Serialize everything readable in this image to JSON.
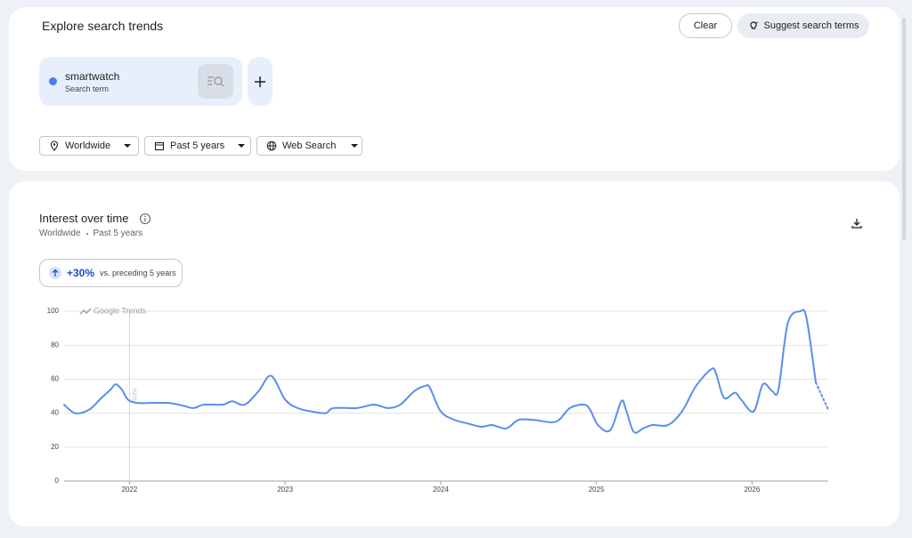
{
  "header": {
    "title": "Explore search trends",
    "clear": "Clear",
    "suggest": "Suggest search terms"
  },
  "search_term": {
    "term": "smartwatch",
    "label": "Search term"
  },
  "filters": [
    "Worldwide",
    "Past 5 years",
    "Web Search"
  ],
  "panel": {
    "title": "Interest over time",
    "subtitle": [
      "Worldwide",
      "Past 5 years"
    ],
    "change": "+30%",
    "change_note": "vs. preceding 5 years"
  },
  "chart_data": {
    "type": "line",
    "watermark": "Google Trends",
    "note": {
      "x": 2022,
      "label": "Note"
    },
    "xlim": [
      2021.58,
      2026.49
    ],
    "xticks": [
      2022,
      2023,
      2024,
      2025,
      2026
    ],
    "ylim": [
      0,
      100
    ],
    "yticks": [
      0,
      20,
      40,
      60,
      80,
      100
    ],
    "grid": true,
    "series": [
      {
        "color": "#5b8def",
        "dashed": false,
        "x": [
          2021.58,
          2021.65,
          2021.74,
          2021.82,
          2021.88,
          2021.91,
          2021.95,
          2021.99,
          2022.05,
          2022.14,
          2022.25,
          2022.34,
          2022.41,
          2022.48,
          2022.6,
          2022.66,
          2022.74,
          2022.83,
          2022.91,
          2023.0,
          2023.08,
          2023.17,
          2023.26,
          2023.31,
          2023.46,
          2023.57,
          2023.66,
          2023.74,
          2023.83,
          2023.9,
          2023.93,
          2024.0,
          2024.09,
          2024.17,
          2024.26,
          2024.33,
          2024.42,
          2024.5,
          2024.6,
          2024.74,
          2024.83,
          2024.92,
          2024.96,
          2025.01,
          2025.09,
          2025.16,
          2025.19,
          2025.24,
          2025.3,
          2025.36,
          2025.46,
          2025.55,
          2025.64,
          2025.74,
          2025.77,
          2025.82,
          2025.89,
          2025.93,
          2026.01,
          2026.07,
          2026.13,
          2026.17,
          2026.23,
          2026.31,
          2026.35,
          2026.41
        ],
        "values": [
          45,
          40,
          42,
          49,
          54,
          57,
          54,
          48,
          46,
          46,
          46,
          44.5,
          43,
          45,
          45,
          47,
          45,
          53,
          62,
          48,
          43,
          41,
          40,
          43,
          43,
          45,
          43,
          45,
          53,
          56,
          55,
          41,
          36,
          34,
          32,
          33,
          31,
          36,
          36,
          35,
          43,
          45,
          42,
          33,
          30,
          47,
          42,
          29,
          31,
          33,
          33,
          41,
          56,
          66,
          63,
          49,
          52,
          48,
          41,
          57,
          53,
          54,
          93,
          100,
          96,
          58
        ]
      },
      {
        "color": "#5b8def",
        "dashed": true,
        "x": [
          2026.41,
          2026.49
        ],
        "values": [
          58,
          42
        ]
      }
    ]
  }
}
